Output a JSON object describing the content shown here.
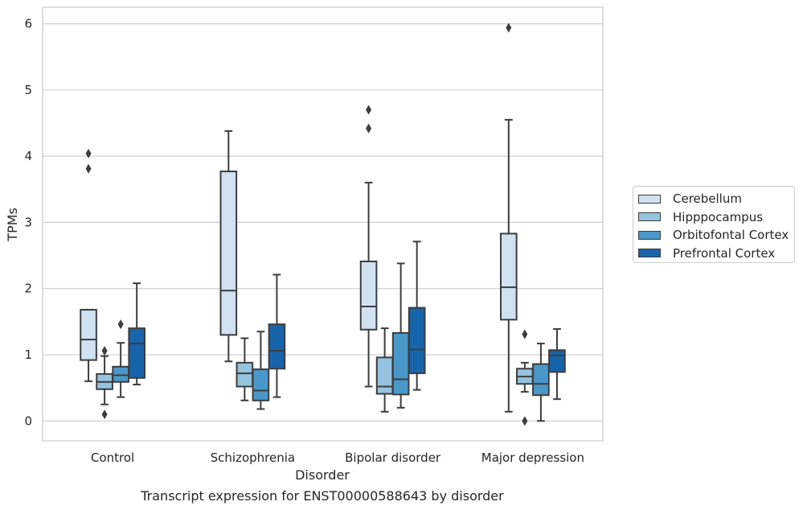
{
  "chart_data": {
    "type": "box",
    "caption": "Transcript expression for ENST00000588643 by disorder",
    "xlabel": "Disorder",
    "ylabel": "TPMs",
    "ylim": [
      -0.3,
      6.25
    ],
    "yticks": [
      0,
      1,
      2,
      3,
      4,
      5,
      6
    ],
    "grid": true,
    "legend_position": "right",
    "categories": [
      "Control",
      "Schizophrenia",
      "Bipolar disorder",
      "Major depression"
    ],
    "series": [
      {
        "name": "Cerebellum",
        "color": "#d0e1f2",
        "boxes": [
          {
            "whislo": 0.6,
            "q1": 0.92,
            "med": 1.23,
            "q3": 1.68,
            "whishi": 1.68,
            "fliers": [
              3.81,
              4.04
            ]
          },
          {
            "whislo": 0.9,
            "q1": 1.3,
            "med": 1.97,
            "q3": 3.77,
            "whishi": 4.38,
            "fliers": []
          },
          {
            "whislo": 0.52,
            "q1": 1.38,
            "med": 1.73,
            "q3": 2.41,
            "whishi": 3.6,
            "fliers": [
              4.42,
              4.7
            ]
          },
          {
            "whislo": 0.14,
            "q1": 1.53,
            "med": 2.02,
            "q3": 2.83,
            "whishi": 4.55,
            "fliers": [
              5.94
            ]
          }
        ]
      },
      {
        "name": "Hipppocampus",
        "color": "#94c4df",
        "boxes": [
          {
            "whislo": 0.25,
            "q1": 0.48,
            "med": 0.59,
            "q3": 0.71,
            "whishi": 0.98,
            "fliers": [
              0.1,
              1.06
            ]
          },
          {
            "whislo": 0.31,
            "q1": 0.52,
            "med": 0.72,
            "q3": 0.88,
            "whishi": 1.25,
            "fliers": []
          },
          {
            "whislo": 0.14,
            "q1": 0.41,
            "med": 0.52,
            "q3": 0.96,
            "whishi": 1.4,
            "fliers": []
          },
          {
            "whislo": 0.44,
            "q1": 0.56,
            "med": 0.67,
            "q3": 0.79,
            "whishi": 0.88,
            "fliers": [
              0.0,
              1.31
            ]
          }
        ]
      },
      {
        "name": "Orbitofontal Cortex",
        "color": "#4a98c9",
        "boxes": [
          {
            "whislo": 0.36,
            "q1": 0.59,
            "med": 0.69,
            "q3": 0.82,
            "whishi": 1.18,
            "fliers": [
              1.46
            ]
          },
          {
            "whislo": 0.18,
            "q1": 0.31,
            "med": 0.46,
            "q3": 0.78,
            "whishi": 1.35,
            "fliers": []
          },
          {
            "whislo": 0.2,
            "q1": 0.4,
            "med": 0.63,
            "q3": 1.33,
            "whishi": 2.38,
            "fliers": []
          },
          {
            "whislo": 0.0,
            "q1": 0.39,
            "med": 0.56,
            "q3": 0.86,
            "whishi": 1.17,
            "fliers": []
          }
        ]
      },
      {
        "name": "Prefrontal Cortex",
        "color": "#1764ab",
        "boxes": [
          {
            "whislo": 0.55,
            "q1": 0.65,
            "med": 1.17,
            "q3": 1.4,
            "whishi": 2.08,
            "fliers": []
          },
          {
            "whislo": 0.36,
            "q1": 0.79,
            "med": 1.06,
            "q3": 1.46,
            "whishi": 2.21,
            "fliers": []
          },
          {
            "whislo": 0.47,
            "q1": 0.72,
            "med": 1.08,
            "q3": 1.71,
            "whishi": 2.71,
            "fliers": []
          },
          {
            "whislo": 0.33,
            "q1": 0.74,
            "med": 0.99,
            "q3": 1.07,
            "whishi": 1.39,
            "fliers": []
          }
        ]
      }
    ]
  }
}
